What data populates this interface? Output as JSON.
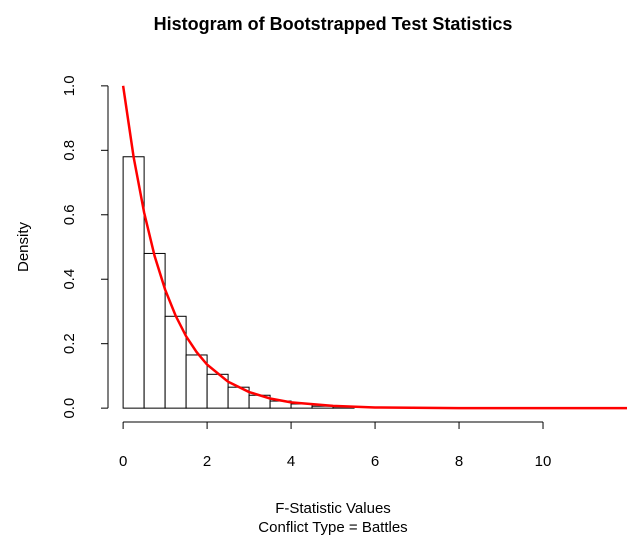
{
  "chart_data": {
    "type": "histogram",
    "title": "Histogram of Bootstrapped Test Statistics",
    "xlabel": "F-Statistic Values",
    "xlabel_line2": "Conflict Type = Battles",
    "ylabel": "Density",
    "bins": [
      0,
      0.5,
      1,
      1.5,
      2,
      2.5,
      3,
      3.5,
      4,
      4.5,
      5,
      5.5
    ],
    "values": [
      0.78,
      0.48,
      0.285,
      0.165,
      0.105,
      0.065,
      0.04,
      0.022,
      0.013,
      0.006,
      0.004
    ],
    "bar_fill": "#ffffff",
    "bar_edge": "#000000",
    "curve": {
      "color": "#ff0000",
      "x": [
        0,
        0.25,
        0.5,
        0.75,
        1,
        1.25,
        1.5,
        1.75,
        2,
        2.5,
        3,
        3.5,
        4,
        5,
        6,
        8,
        12
      ],
      "values": [
        1,
        0.779,
        0.607,
        0.472,
        0.368,
        0.287,
        0.223,
        0.174,
        0.135,
        0.082,
        0.05,
        0.03,
        0.018,
        0.007,
        0.002,
        0,
        0
      ]
    },
    "xlim": [
      -0.36,
      12
    ],
    "ylim": [
      -0.043,
      1.043
    ],
    "xticks": [
      0,
      2,
      4,
      6,
      8,
      10
    ],
    "yticks": [
      {
        "value": 0,
        "label": "0.0"
      },
      {
        "value": 0.2,
        "label": "0.2"
      },
      {
        "value": 0.4,
        "label": "0.4"
      },
      {
        "value": 0.6,
        "label": "0.6"
      },
      {
        "value": 0.8,
        "label": "0.8"
      },
      {
        "value": 1,
        "label": "1.0"
      }
    ]
  }
}
